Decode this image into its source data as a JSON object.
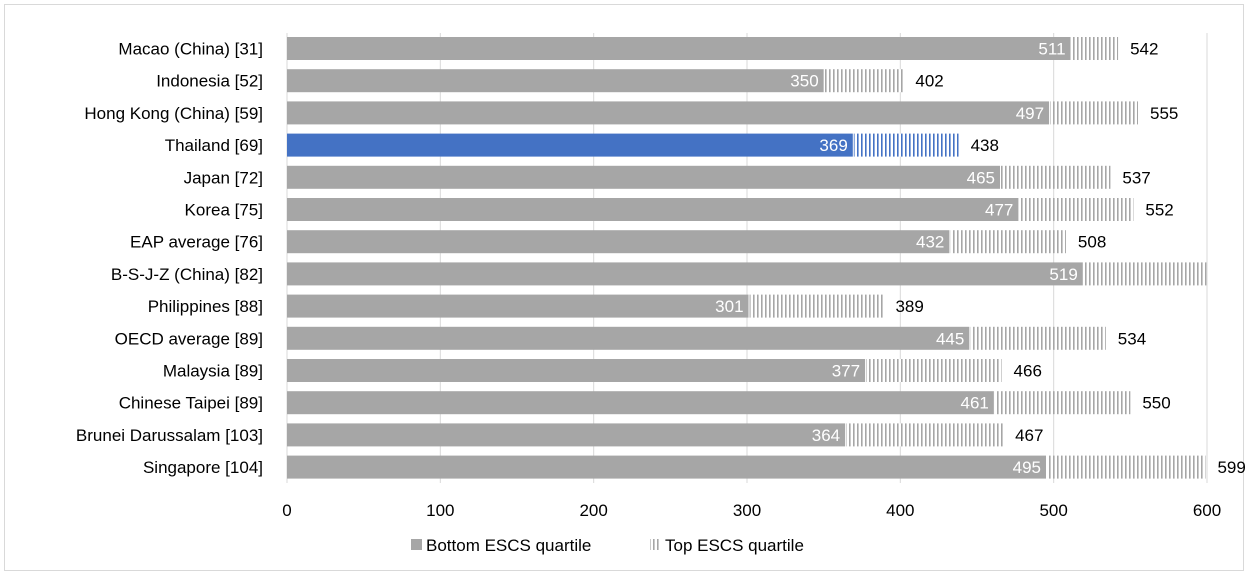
{
  "chart_data": {
    "type": "bar",
    "orientation": "horizontal",
    "categories": [
      "Macao (China) [31]",
      "Indonesia [52]",
      "Hong Kong (China) [59]",
      "Thailand [69]",
      "Japan [72]",
      "Korea [75]",
      "EAP average [76]",
      "B-S-J-Z (China) [82]",
      "Philippines [88]",
      "OECD average [89]",
      "Malaysia [89]",
      "Chinese Taipei [89]",
      "Brunei Darussalam [103]",
      "Singapore [104]"
    ],
    "series": [
      {
        "name": "Bottom ESCS quartile",
        "values": [
          511,
          350,
          497,
          369,
          465,
          477,
          432,
          519,
          301,
          445,
          377,
          461,
          364,
          495
        ]
      },
      {
        "name": "Top ESCS quartile",
        "values": [
          542,
          402,
          555,
          438,
          537,
          552,
          508,
          601,
          389,
          534,
          466,
          550,
          467,
          599
        ]
      }
    ],
    "top_labels": [
      "542",
      "402",
      "555",
      "438",
      "537",
      "552",
      "508",
      "",
      "389",
      "534",
      "466",
      "550",
      "467",
      "599"
    ],
    "highlight_category": "Thailand [69]",
    "xlim": [
      0,
      600
    ],
    "xticks": [
      "0",
      "100",
      "200",
      "300",
      "400",
      "500",
      "600"
    ],
    "grid": true,
    "legend_position": "bottom",
    "colors": {
      "bottom": "#a6a6a6",
      "top_stripe": "#a6a6a6",
      "highlight": "#4472c4",
      "grid": "#d9d9d9"
    }
  }
}
